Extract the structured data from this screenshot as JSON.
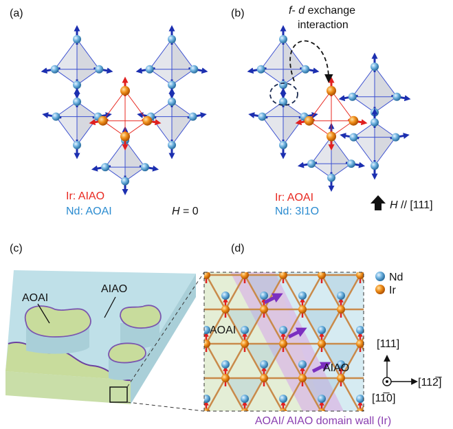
{
  "panels": {
    "a": {
      "label": "(a)",
      "ir": "Ir: AIAO",
      "nd": "Nd: AOAI",
      "field_symbol": "H",
      "field_value": "= 0"
    },
    "b": {
      "label": "(b)",
      "annotation": {
        "f": "f",
        "dash": "-",
        "d": "d",
        "rest": "exchange",
        "line2": "interaction"
      },
      "ir": "Ir: AOAI",
      "nd": "Nd: 3I1O",
      "field_symbol": "H",
      "field_value": "// [111]"
    },
    "c": {
      "label": "(c)",
      "region_1": "AOAI",
      "region_2": "AIAO"
    },
    "d": {
      "label": "(d)",
      "region_1": "AOAI",
      "region_2": "AIAO",
      "legend": [
        "Nd",
        "Ir"
      ],
      "axes": {
        "up": "[111]",
        "right": "[112̅]",
        "out": "[11̅0]"
      },
      "caption": "AOAI/ AIAO domain wall (Ir)"
    }
  }
}
